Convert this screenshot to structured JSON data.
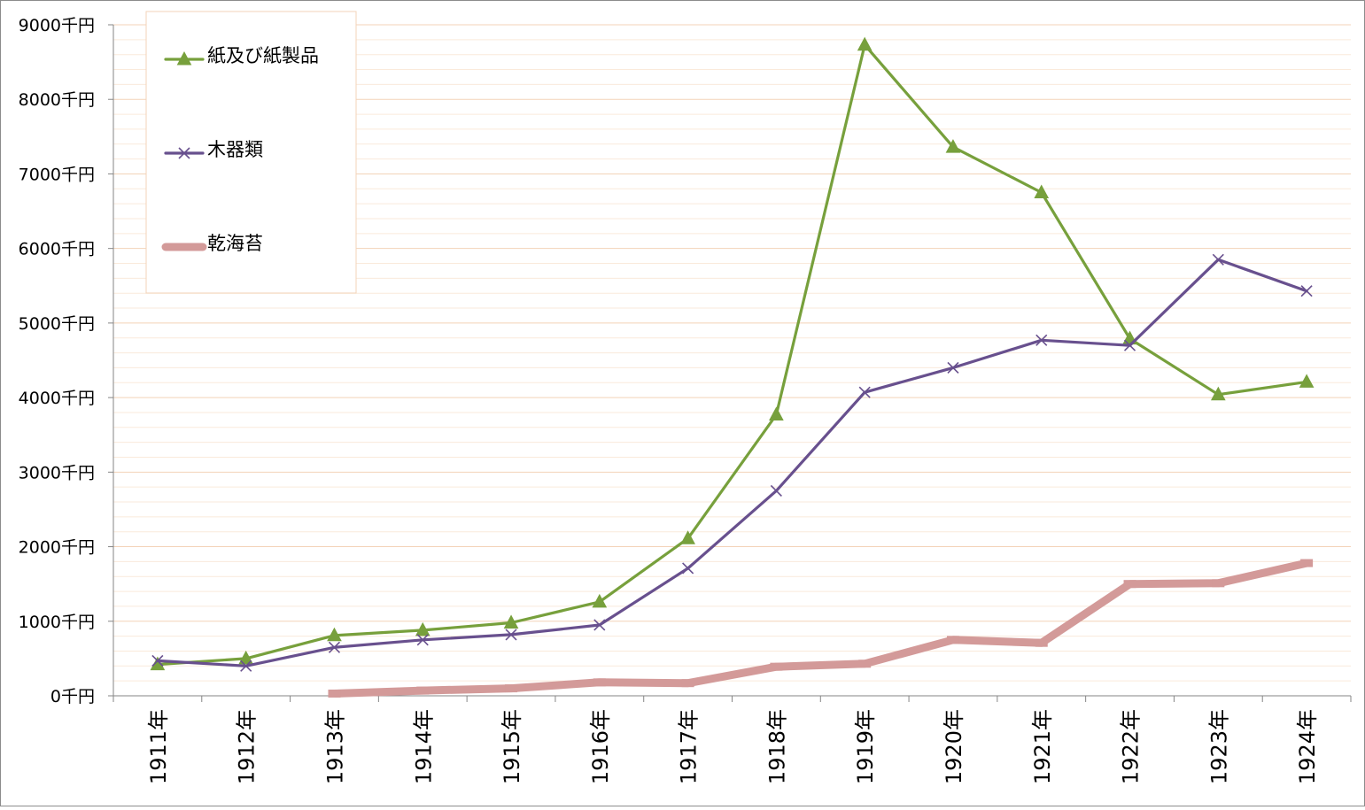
{
  "chart_data": {
    "type": "line",
    "categories": [
      "1911年",
      "1912年",
      "1913年",
      "1914年",
      "1915年",
      "1916年",
      "1917年",
      "1918年",
      "1919年",
      "1920年",
      "1921年",
      "1922年",
      "1923年",
      "1924年"
    ],
    "ylim": [
      0,
      9000
    ],
    "y_unit": "千円",
    "y_ticks": [
      "0千円",
      "1000千円",
      "2000千円",
      "3000千円",
      "4000千円",
      "5000千円",
      "6000千円",
      "7000千円",
      "8000千円",
      "9000千円"
    ],
    "grid": true,
    "legend_position": "top-left",
    "series": [
      {
        "name": "紙及び紙製品",
        "marker": "triangle",
        "color": "#77a03c",
        "values": [
          420,
          500,
          810,
          880,
          980,
          1260,
          2110,
          3770,
          8730,
          7360,
          6750,
          4790,
          4040,
          4210
        ]
      },
      {
        "name": "木器類",
        "marker": "x",
        "color": "#68508e",
        "values": [
          470,
          400,
          650,
          750,
          820,
          950,
          1710,
          2750,
          4070,
          4400,
          4770,
          4700,
          5850,
          5430
        ]
      },
      {
        "name": "乾海苔",
        "marker": "none",
        "color": "#d39a99",
        "values": [
          null,
          null,
          30,
          70,
          100,
          180,
          170,
          390,
          430,
          750,
          710,
          1500,
          1510,
          1780
        ]
      }
    ]
  }
}
